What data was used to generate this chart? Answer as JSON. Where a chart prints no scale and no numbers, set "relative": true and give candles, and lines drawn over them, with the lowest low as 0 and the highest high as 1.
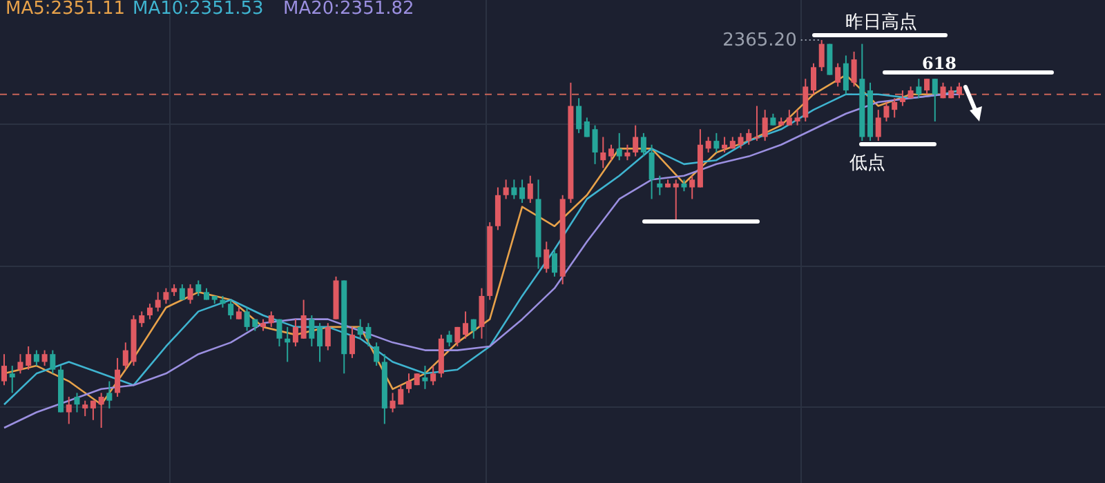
{
  "chart_data": {
    "type": "candlestick",
    "relative": true,
    "grid": true,
    "legend": "top left",
    "categories": [
      null,
      null,
      null,
      null,
      null,
      null,
      null,
      null,
      null,
      null,
      null,
      null,
      null,
      null,
      null,
      null,
      null,
      null,
      null,
      null,
      null,
      null,
      null,
      null,
      null,
      null,
      null,
      null,
      null,
      null,
      null,
      null,
      null,
      null,
      null,
      null,
      null,
      null,
      null,
      null,
      null,
      null,
      null,
      null,
      null,
      null,
      null,
      null,
      null,
      null,
      null,
      null,
      null,
      null,
      null,
      null,
      null,
      null,
      null,
      null,
      null,
      null,
      null,
      null,
      null,
      null,
      null,
      null,
      null,
      null,
      null,
      null,
      null,
      null,
      null,
      null,
      null,
      null,
      null,
      null,
      null,
      null,
      null,
      null,
      null,
      null,
      null,
      null,
      null,
      null,
      null,
      null,
      null,
      null,
      null,
      null,
      null,
      null,
      null,
      null,
      null,
      null,
      null,
      null,
      null,
      null,
      null,
      null,
      null,
      null,
      null,
      null,
      null,
      null,
      null,
      null,
      null,
      null,
      null
    ],
    "ohlc": [
      [
        0.12,
        0.19,
        0.11,
        0.16
      ],
      [
        0.14,
        0.16,
        0.09,
        0.13
      ],
      [
        0.15,
        0.19,
        0.14,
        0.17
      ],
      [
        0.16,
        0.21,
        0.15,
        0.19
      ],
      [
        0.19,
        0.2,
        0.16,
        0.17
      ],
      [
        0.17,
        0.2,
        0.16,
        0.19
      ],
      [
        0.19,
        0.2,
        0.14,
        0.15
      ],
      [
        0.15,
        0.16,
        0.04,
        0.04
      ],
      [
        0.04,
        0.08,
        0.01,
        0.06
      ],
      [
        0.08,
        0.09,
        0.04,
        0.06
      ],
      [
        0.05,
        0.07,
        0.03,
        0.06
      ],
      [
        0.05,
        0.07,
        0.02,
        0.07
      ],
      [
        0.06,
        0.09,
        0,
        0.08
      ],
      [
        0.09,
        0.12,
        0.05,
        0.07
      ],
      [
        0.09,
        0.18,
        0.08,
        0.15
      ],
      [
        0.16,
        0.22,
        0.15,
        0.2
      ],
      [
        0.17,
        0.29,
        0.16,
        0.28
      ],
      [
        0.27,
        0.3,
        0.26,
        0.29
      ],
      [
        0.29,
        0.32,
        0.28,
        0.31
      ],
      [
        0.31,
        0.35,
        0.3,
        0.33
      ],
      [
        0.33,
        0.36,
        0.32,
        0.35
      ],
      [
        0.35,
        0.37,
        0.34,
        0.36
      ],
      [
        0.36,
        0.37,
        0.33,
        0.33
      ],
      [
        0.33,
        0.37,
        0.32,
        0.36
      ],
      [
        0.37,
        0.38,
        0.34,
        0.35
      ],
      [
        0.35,
        0.36,
        0.33,
        0.33
      ],
      [
        0.34,
        0.34,
        0.32,
        0.33
      ],
      [
        0.33,
        0.34,
        0.31,
        0.32
      ],
      [
        0.32,
        0.33,
        0.28,
        0.29
      ],
      [
        0.28,
        0.31,
        0.28,
        0.3
      ],
      [
        0.3,
        0.31,
        0.25,
        0.26
      ],
      [
        0.28,
        0.28,
        0.25,
        0.26
      ],
      [
        0.26,
        0.28,
        0.25,
        0.27
      ],
      [
        0.27,
        0.3,
        0.26,
        0.29
      ],
      [
        0.28,
        0.28,
        0.21,
        0.23
      ],
      [
        0.23,
        0.26,
        0.17,
        0.22
      ],
      [
        0.22,
        0.28,
        0.21,
        0.26
      ],
      [
        0.23,
        0.33,
        0.23,
        0.29
      ],
      [
        0.28,
        0.29,
        0.21,
        0.23
      ],
      [
        0.26,
        0.27,
        0.17,
        0.21
      ],
      [
        0.21,
        0.27,
        0.2,
        0.26
      ],
      [
        0.28,
        0.39,
        0.28,
        0.38
      ],
      [
        0.38,
        0.38,
        0.14,
        0.19
      ],
      [
        0.19,
        0.26,
        0.18,
        0.24
      ],
      [
        0.26,
        0.28,
        0.23,
        0.24
      ],
      [
        0.26,
        0.27,
        0.21,
        0.23
      ],
      [
        0.21,
        0.22,
        0.16,
        0.17
      ],
      [
        0.17,
        0.19,
        0.01,
        0.05
      ],
      [
        0.05,
        0.09,
        0.04,
        0.07
      ],
      [
        0.06,
        0.11,
        0.06,
        0.1
      ],
      [
        0.1,
        0.14,
        0.09,
        0.12
      ],
      [
        0.11,
        0.14,
        0.11,
        0.14
      ],
      [
        0.13,
        0.16,
        0.1,
        0.12
      ],
      [
        0.12,
        0.16,
        0.11,
        0.14
      ],
      [
        0.14,
        0.24,
        0.13,
        0.23
      ],
      [
        0.24,
        0.25,
        0.21,
        0.22
      ],
      [
        0.22,
        0.26,
        0.21,
        0.26
      ],
      [
        0.24,
        0.3,
        0.23,
        0.27
      ],
      [
        0.28,
        0.28,
        0.23,
        0.25
      ],
      [
        0.26,
        0.36,
        0.23,
        0.34
      ],
      [
        0.34,
        0.53,
        0.33,
        0.52
      ],
      [
        0.52,
        0.62,
        0.51,
        0.6
      ],
      [
        0.6,
        0.64,
        0.59,
        0.62
      ],
      [
        0.62,
        0.64,
        0.59,
        0.6
      ],
      [
        0.62,
        0.64,
        0.58,
        0.59
      ],
      [
        0.59,
        0.65,
        0.58,
        0.63
      ],
      [
        0.59,
        0.64,
        0.41,
        0.44
      ],
      [
        0.41,
        0.48,
        0.4,
        0.46
      ],
      [
        0.45,
        0.46,
        0.39,
        0.4
      ],
      [
        0.39,
        0.6,
        0.37,
        0.59
      ],
      [
        0.59,
        0.89,
        0.58,
        0.83
      ],
      [
        0.83,
        0.85,
        0.76,
        0.77
      ],
      [
        0.79,
        0.8,
        0.75,
        0.75
      ],
      [
        0.77,
        0.78,
        0.68,
        0.71
      ],
      [
        0.69,
        0.75,
        0.67,
        0.71
      ],
      [
        0.7,
        0.73,
        0.69,
        0.72
      ],
      [
        0.72,
        0.76,
        0.69,
        0.7
      ],
      [
        0.7,
        0.73,
        0.69,
        0.71
      ],
      [
        0.71,
        0.78,
        0.7,
        0.75
      ],
      [
        0.75,
        0.76,
        0.7,
        0.71
      ],
      [
        0.71,
        0.73,
        0.59,
        0.64
      ],
      [
        0.63,
        0.65,
        0.6,
        0.62
      ],
      [
        0.62,
        0.64,
        0.62,
        0.63
      ],
      [
        0.62,
        0.64,
        0.53,
        0.63
      ],
      [
        0.63,
        0.64,
        0.61,
        0.62
      ],
      [
        0.62,
        0.65,
        0.59,
        0.64
      ],
      [
        0.62,
        0.77,
        0.62,
        0.73
      ],
      [
        0.72,
        0.75,
        0.71,
        0.74
      ],
      [
        0.74,
        0.76,
        0.71,
        0.72
      ],
      [
        0.72,
        0.75,
        0.71,
        0.73
      ],
      [
        0.72,
        0.75,
        0.72,
        0.74
      ],
      [
        0.73,
        0.76,
        0.72,
        0.75
      ],
      [
        0.74,
        0.77,
        0.73,
        0.76
      ],
      [
        0.75,
        0.83,
        0.74,
        0.75
      ],
      [
        0.75,
        0.82,
        0.74,
        0.8
      ],
      [
        0.8,
        0.81,
        0.78,
        0.78
      ],
      [
        0.78,
        0.8,
        0.78,
        0.79
      ],
      [
        0.78,
        0.82,
        0.78,
        0.8
      ],
      [
        0.79,
        0.82,
        0.78,
        0.8
      ],
      [
        0.8,
        0.9,
        0.79,
        0.88
      ],
      [
        0.87,
        0.94,
        0.86,
        0.93
      ],
      [
        0.93,
        1,
        0.92,
        0.99
      ],
      [
        0.99,
        0.99,
        0.91,
        0.91
      ],
      [
        0.89,
        0.94,
        0.88,
        0.93
      ],
      [
        0.94,
        0.96,
        0.86,
        0.87
      ],
      [
        0.89,
        0.97,
        0.88,
        0.95
      ],
      [
        0.9,
        0.99,
        0.74,
        0.75
      ],
      [
        0.87,
        0.89,
        0.74,
        0.75
      ],
      [
        0.75,
        0.82,
        0.74,
        0.8
      ],
      [
        0.8,
        0.84,
        0.79,
        0.83
      ],
      [
        0.82,
        0.85,
        0.8,
        0.84
      ],
      [
        0.84,
        0.87,
        0.83,
        0.85
      ],
      [
        0.85,
        0.88,
        0.85,
        0.87
      ],
      [
        0.88,
        0.9,
        0.85,
        0.86
      ],
      [
        0.87,
        0.9,
        0.86,
        0.9
      ],
      [
        0.9,
        0.9,
        0.79,
        0.86
      ],
      [
        0.85,
        0.89,
        0.85,
        0.88
      ],
      [
        0.85,
        0.88,
        0.85,
        0.87
      ],
      [
        0.86,
        0.89,
        0.85,
        0.88
      ]
    ],
    "series": [
      {
        "name": "MA5:2351.11",
        "type": "line",
        "color": "#e8a24a",
        "values": [
          0.14,
          null,
          null,
          null,
          0.16,
          null,
          null,
          null,
          0.12,
          null,
          null,
          null,
          0.06,
          null,
          null,
          null,
          0.18,
          null,
          null,
          null,
          0.31,
          null,
          null,
          null,
          0.35,
          null,
          null,
          null,
          0.33,
          null,
          null,
          null,
          0.26,
          null,
          null,
          null,
          0.24,
          null,
          null,
          null,
          0.26,
          null,
          null,
          null,
          0.26,
          null,
          null,
          null,
          0.1,
          null,
          null,
          null,
          0.14,
          null,
          null,
          null,
          0.22,
          null,
          null,
          null,
          0.28,
          null,
          null,
          null,
          0.57,
          null,
          null,
          null,
          0.52,
          null,
          null,
          null,
          0.6,
          null,
          null,
          null,
          0.72,
          null,
          null,
          null,
          0.72,
          null,
          null,
          null,
          0.63,
          null,
          null,
          null,
          0.71,
          null,
          null,
          null,
          0.74,
          null,
          null,
          null,
          0.78,
          null,
          null,
          null,
          0.86,
          null,
          null,
          null,
          0.91,
          null,
          null,
          null,
          0.83,
          null,
          null,
          null,
          0.86,
          null,
          null,
          null,
          0.86,
          null,
          0.87
        ]
      },
      {
        "name": "MA10:2351.53",
        "type": "line",
        "color": "#3fb4d0",
        "values": [
          0.06,
          null,
          null,
          null,
          0.14,
          null,
          null,
          null,
          0.17,
          null,
          null,
          null,
          0.14,
          null,
          null,
          null,
          0.11,
          null,
          null,
          null,
          0.21,
          null,
          null,
          null,
          0.3,
          null,
          null,
          null,
          0.33,
          null,
          null,
          null,
          0.29,
          null,
          null,
          null,
          0.26,
          null,
          null,
          null,
          0.26,
          null,
          null,
          null,
          0.23,
          null,
          null,
          null,
          0.17,
          null,
          null,
          null,
          0.14,
          null,
          null,
          null,
          0.15,
          null,
          null,
          null,
          0.21,
          null,
          null,
          null,
          0.34,
          null,
          null,
          null,
          0.46,
          null,
          null,
          null,
          0.59,
          null,
          null,
          null,
          0.65,
          null,
          null,
          null,
          0.72,
          null,
          null,
          null,
          0.68,
          null,
          null,
          null,
          0.69,
          null,
          null,
          null,
          0.74,
          null,
          null,
          null,
          0.77,
          null,
          null,
          null,
          0.82,
          null,
          null,
          null,
          0.86,
          null,
          null,
          null,
          0.86,
          null,
          null,
          null,
          0.85,
          null,
          null,
          null,
          0.86,
          null,
          0.87
        ]
      },
      {
        "name": "MA20:2351.82",
        "type": "line",
        "color": "#9b8fe0",
        "values": [
          0,
          null,
          null,
          null,
          0.04,
          null,
          null,
          null,
          0.07,
          null,
          null,
          null,
          0.1,
          null,
          null,
          null,
          0.11,
          null,
          null,
          null,
          0.14,
          null,
          null,
          null,
          0.19,
          null,
          null,
          null,
          0.22,
          null,
          null,
          null,
          0.27,
          null,
          null,
          null,
          0.28,
          null,
          null,
          null,
          0.28,
          null,
          null,
          null,
          0.25,
          null,
          null,
          null,
          0.22,
          null,
          null,
          null,
          0.2,
          null,
          null,
          null,
          0.2,
          null,
          null,
          null,
          0.21,
          null,
          null,
          null,
          0.28,
          null,
          null,
          null,
          0.36,
          null,
          null,
          null,
          0.48,
          null,
          null,
          null,
          0.59,
          null,
          null,
          null,
          0.64,
          null,
          null,
          null,
          0.65,
          null,
          null,
          null,
          0.68,
          null,
          null,
          null,
          0.7,
          null,
          null,
          null,
          0.73,
          null,
          null,
          null,
          0.77,
          null,
          null,
          null,
          0.81,
          null,
          null,
          null,
          0.84,
          null,
          null,
          null,
          0.85,
          null,
          null,
          null,
          0.86,
          null,
          0.86
        ]
      }
    ],
    "ref_lines": [
      {
        "axis": "y",
        "value": 0.86,
        "color": "#c86458",
        "line_style": "dashed"
      }
    ],
    "annotations": [
      "2365.20",
      "昨日高点",
      "618",
      "低点"
    ]
  }
}
